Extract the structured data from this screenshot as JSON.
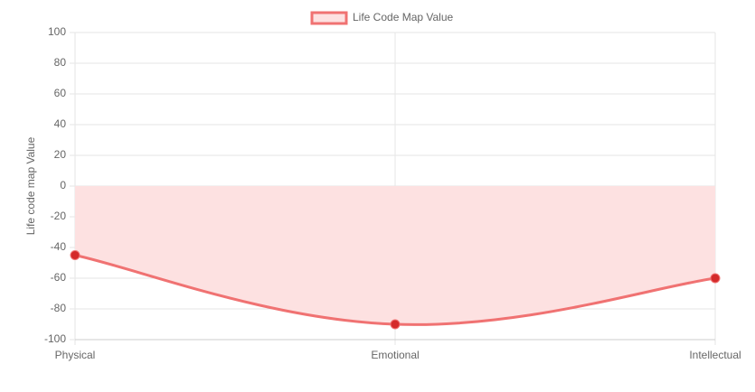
{
  "chart_data": {
    "type": "line",
    "legend": "top",
    "y_label": "Life code map Value",
    "categories": [
      "Physical",
      "Emotional",
      "Intellectual"
    ],
    "series": [
      {
        "name": "Life Code Map Value",
        "color": "#f07272",
        "fill": "#fde1e1",
        "point_color": "#d42a2a",
        "values": [
          -45,
          -90,
          -60
        ]
      }
    ],
    "ylim": [
      -100,
      100
    ],
    "yticks": [
      -100,
      -80,
      -60,
      -40,
      -20,
      0,
      20,
      40,
      60,
      80,
      100
    ],
    "grid": true
  }
}
